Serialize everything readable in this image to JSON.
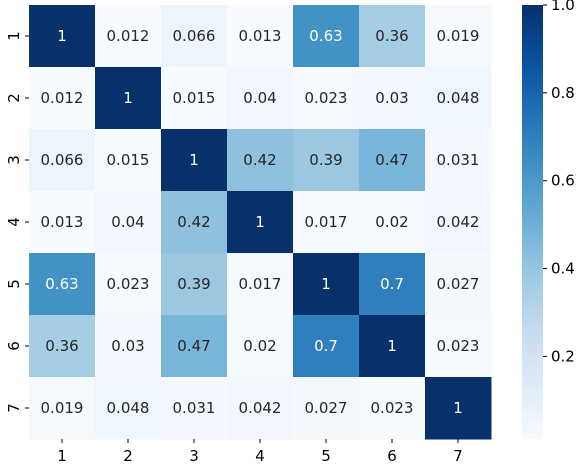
{
  "chart_data": {
    "type": "heatmap",
    "row_labels": [
      "1",
      "2",
      "3",
      "4",
      "5",
      "6",
      "7"
    ],
    "col_labels": [
      "1",
      "2",
      "3",
      "4",
      "5",
      "6",
      "7"
    ],
    "values": [
      [
        1,
        0.012,
        0.066,
        0.013,
        0.63,
        0.36,
        0.019
      ],
      [
        0.012,
        1,
        0.015,
        0.04,
        0.023,
        0.03,
        0.048
      ],
      [
        0.066,
        0.015,
        1,
        0.42,
        0.39,
        0.47,
        0.031
      ],
      [
        0.013,
        0.04,
        0.42,
        1,
        0.017,
        0.02,
        0.042
      ],
      [
        0.63,
        0.023,
        0.39,
        0.017,
        1,
        0.7,
        0.027
      ],
      [
        0.36,
        0.03,
        0.47,
        0.02,
        0.7,
        1,
        0.023
      ],
      [
        0.019,
        0.048,
        0.031,
        0.042,
        0.027,
        0.023,
        1
      ]
    ],
    "annotations": [
      [
        "1",
        "0.012",
        "0.066",
        "0.013",
        "0.63",
        "0.36",
        "0.019"
      ],
      [
        "0.012",
        "1",
        "0.015",
        "0.04",
        "0.023",
        "0.03",
        "0.048"
      ],
      [
        "0.066",
        "0.015",
        "1",
        "0.42",
        "0.39",
        "0.47",
        "0.031"
      ],
      [
        "0.013",
        "0.04",
        "0.42",
        "1",
        "0.017",
        "0.02",
        "0.042"
      ],
      [
        "0.63",
        "0.023",
        "0.39",
        "0.017",
        "1",
        "0.7",
        "0.027"
      ],
      [
        "0.36",
        "0.03",
        "0.47",
        "0.02",
        "0.7",
        "1",
        "0.023"
      ],
      [
        "0.019",
        "0.048",
        "0.031",
        "0.042",
        "0.027",
        "0.023",
        "1"
      ]
    ],
    "colormap": "Blues",
    "vmin": 0.012,
    "vmax": 1.0,
    "colorbar": {
      "ticks": [
        0.2,
        0.4,
        0.6,
        0.8,
        1.0
      ],
      "tick_labels": [
        "0.2",
        "0.4",
        "0.6",
        "0.8",
        "1.0"
      ],
      "placement": "right"
    },
    "title": "",
    "xlabel": "",
    "ylabel": ""
  }
}
